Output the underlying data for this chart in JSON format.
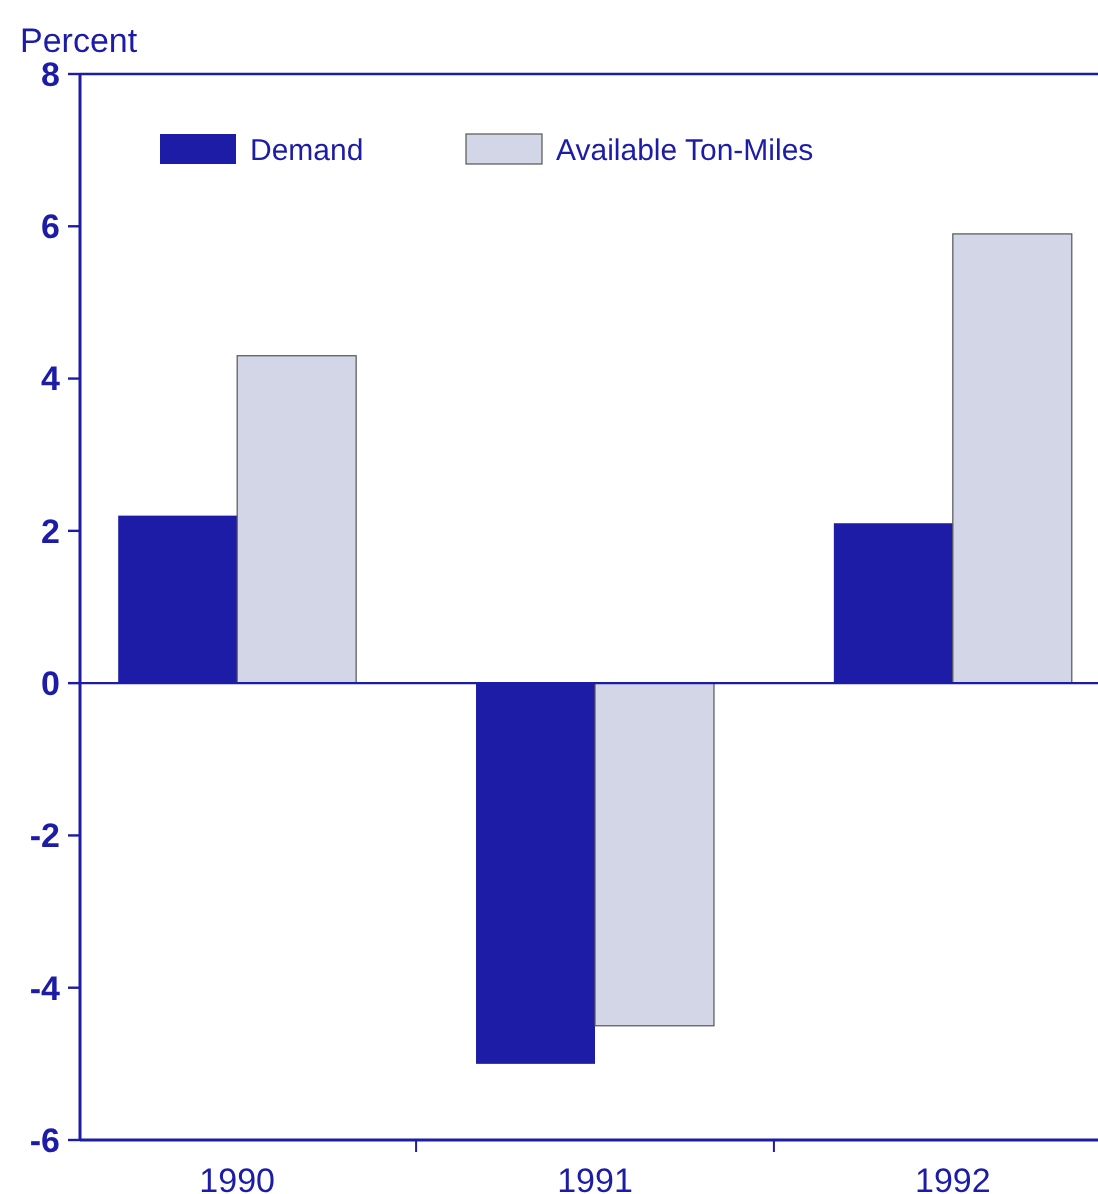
{
  "chart_data": {
    "type": "bar",
    "ylabel": "Percent",
    "categories": [
      "1990",
      "1991",
      "1992"
    ],
    "series": [
      {
        "name": "Demand",
        "color": "#1c1ca6",
        "values": [
          2.2,
          -5.0,
          2.1
        ]
      },
      {
        "name": "Available Ton-Miles",
        "color": "#d3d6e6",
        "values": [
          4.3,
          -4.5,
          5.9
        ]
      }
    ],
    "ylim": [
      -6,
      8
    ],
    "yticks": [
      -6,
      -4,
      -2,
      0,
      2,
      4,
      6,
      8
    ],
    "legend": "top left",
    "grid": false,
    "ref_lines": [
      {
        "axis": "y",
        "value": 0,
        "color": "#1c1ca6"
      }
    ]
  }
}
